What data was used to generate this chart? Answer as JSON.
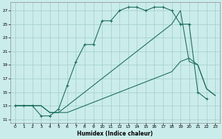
{
  "xlabel": "Humidex (Indice chaleur)",
  "bg_color": "#caecea",
  "grid_color": "#a0cccc",
  "line_color": "#1a6b5a",
  "x_ticks": [
    0,
    1,
    2,
    3,
    4,
    5,
    6,
    7,
    8,
    9,
    10,
    11,
    12,
    13,
    14,
    15,
    16,
    17,
    18,
    19,
    20,
    21,
    22,
    23
  ],
  "y_ticks": [
    11,
    13,
    15,
    17,
    19,
    21,
    23,
    25,
    27
  ],
  "x_min": -0.5,
  "x_max": 23.5,
  "y_min": 10.5,
  "y_max": 28.2,
  "series1_x": [
    0,
    1,
    2,
    3,
    4,
    5,
    6,
    7,
    8,
    9,
    10,
    11,
    12,
    13,
    14,
    15,
    16,
    17,
    18,
    19,
    20,
    21,
    22
  ],
  "series1_y": [
    13,
    13,
    13,
    11.5,
    11.5,
    12.5,
    16,
    19.5,
    22,
    22,
    25.5,
    25.5,
    27,
    27.5,
    27.5,
    27,
    27.5,
    27.5,
    27,
    25,
    25,
    15,
    14
  ],
  "series2_x": [
    0,
    1,
    2,
    3,
    4,
    5,
    6,
    7,
    8,
    9,
    10,
    11,
    12,
    13,
    14,
    15,
    16,
    17,
    18,
    19,
    20,
    21,
    22,
    23
  ],
  "series2_y": [
    13,
    13,
    13,
    13,
    12,
    12,
    13,
    14,
    15,
    16,
    17,
    18,
    19,
    20,
    21,
    22,
    23,
    24,
    25,
    27,
    19.5,
    19,
    15.5,
    14.5
  ],
  "series3_x": [
    0,
    1,
    2,
    3,
    4,
    5,
    6,
    7,
    8,
    9,
    10,
    11,
    12,
    13,
    14,
    15,
    16,
    17,
    18,
    19,
    20,
    21,
    22,
    23
  ],
  "series3_y": [
    13,
    13,
    13,
    13,
    12,
    12,
    12,
    12.5,
    13,
    13.5,
    14,
    14.5,
    15,
    15.5,
    16,
    16.5,
    17,
    17.5,
    18,
    19.5,
    20,
    19,
    15.5,
    14.5
  ]
}
